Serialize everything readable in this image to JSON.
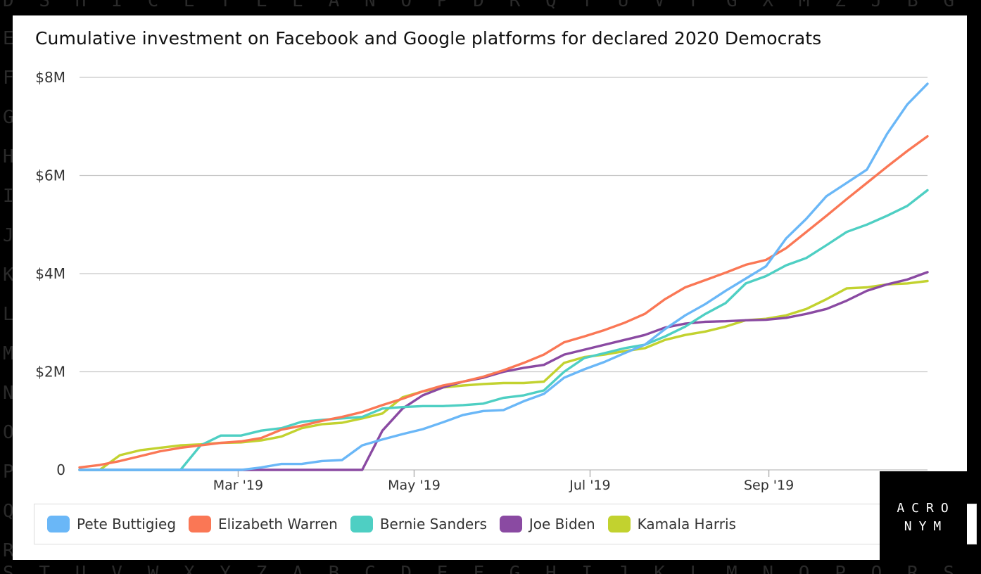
{
  "background": {
    "top_letters": [
      "D",
      "S",
      "H",
      "I",
      "C",
      "E",
      "Y",
      "L",
      "E",
      "A",
      "N",
      "O",
      "P",
      "D",
      "R",
      "Q",
      "T",
      "U",
      "V",
      "F",
      "G",
      "X",
      "M",
      "Z",
      "J",
      "B",
      "G"
    ],
    "left_letters": [
      "E",
      "F",
      "G",
      "H",
      "I",
      "J",
      "K",
      "L",
      "M",
      "N",
      "O",
      "P",
      "Q",
      "R"
    ],
    "bottom_letters": [
      "S",
      "T",
      "U",
      "V",
      "W",
      "X",
      "Y",
      "Z",
      "A",
      "B",
      "C",
      "D",
      "E",
      "F",
      "G",
      "H",
      "I",
      "J",
      "K",
      "L",
      "M",
      "N",
      "O",
      "P",
      "Q",
      "R",
      "S"
    ]
  },
  "logo": {
    "line1": "ACRO",
    "line2": "NYM"
  },
  "colors": {
    "buttigieg": "#6ab7f7",
    "warren": "#fa7755",
    "sanders": "#4ecfc3",
    "biden": "#8a4aa2",
    "harris": "#c2d22f",
    "grid": "#c8c8c8",
    "axis_text": "#333333"
  },
  "chart_data": {
    "type": "line",
    "title": "Cumulative investment on Facebook and Google platforms for declared 2020 Democrats",
    "xlabel": "",
    "ylabel": "",
    "ylim": [
      0,
      8
    ],
    "xlim": [
      "2019-01-05",
      "2019-10-26"
    ],
    "yticks": [
      0,
      2,
      4,
      6,
      8
    ],
    "ytick_labels": [
      "0",
      "$2M",
      "$4M",
      "$6M",
      "$8M"
    ],
    "xticks": [
      "2019-03-01",
      "2019-05-01",
      "2019-07-01",
      "2019-09-01"
    ],
    "xtick_labels": [
      "Mar '19",
      "May '19",
      "Jul '19",
      "Sep '19"
    ],
    "grid": true,
    "legend_position": "bottom",
    "x": [
      "2019-01-05",
      "2019-01-12",
      "2019-01-19",
      "2019-01-26",
      "2019-02-02",
      "2019-02-09",
      "2019-02-16",
      "2019-02-23",
      "2019-03-02",
      "2019-03-09",
      "2019-03-16",
      "2019-03-23",
      "2019-03-30",
      "2019-04-06",
      "2019-04-13",
      "2019-04-20",
      "2019-04-27",
      "2019-05-04",
      "2019-05-11",
      "2019-05-18",
      "2019-05-25",
      "2019-06-01",
      "2019-06-08",
      "2019-06-15",
      "2019-06-22",
      "2019-06-29",
      "2019-07-06",
      "2019-07-13",
      "2019-07-20",
      "2019-07-27",
      "2019-08-03",
      "2019-08-10",
      "2019-08-17",
      "2019-08-24",
      "2019-08-31",
      "2019-09-07",
      "2019-09-14",
      "2019-09-21",
      "2019-09-28",
      "2019-10-05",
      "2019-10-12",
      "2019-10-19",
      "2019-10-26"
    ],
    "series": [
      {
        "name": "Pete Buttigieg",
        "key": "buttigieg",
        "values": [
          0,
          0,
          0,
          0,
          0,
          0,
          0,
          0,
          0,
          0.05,
          0.12,
          0.12,
          0.18,
          0.2,
          0.5,
          0.62,
          0.73,
          0.83,
          0.97,
          1.12,
          1.2,
          1.22,
          1.4,
          1.55,
          1.88,
          2.05,
          2.2,
          2.38,
          2.55,
          2.87,
          3.15,
          3.38,
          3.65,
          3.9,
          4.15,
          4.72,
          5.12,
          5.58,
          5.85,
          6.12,
          6.85,
          7.45,
          7.87
        ]
      },
      {
        "name": "Elizabeth Warren",
        "key": "warren",
        "values": [
          0.05,
          0.1,
          0.18,
          0.28,
          0.38,
          0.45,
          0.5,
          0.55,
          0.58,
          0.65,
          0.82,
          0.9,
          1.0,
          1.08,
          1.18,
          1.32,
          1.45,
          1.6,
          1.72,
          1.8,
          1.9,
          2.03,
          2.18,
          2.35,
          2.6,
          2.72,
          2.85,
          3.0,
          3.18,
          3.48,
          3.72,
          3.87,
          4.02,
          4.18,
          4.28,
          4.52,
          4.85,
          5.18,
          5.52,
          5.85,
          6.18,
          6.5,
          6.8
        ]
      },
      {
        "name": "Bernie Sanders",
        "key": "sanders",
        "values": [
          0,
          0,
          0,
          0,
          0,
          0,
          0.5,
          0.7,
          0.7,
          0.8,
          0.85,
          0.98,
          1.02,
          1.05,
          1.08,
          1.25,
          1.28,
          1.3,
          1.3,
          1.32,
          1.35,
          1.47,
          1.52,
          1.62,
          2.0,
          2.28,
          2.38,
          2.48,
          2.55,
          2.72,
          2.92,
          3.18,
          3.4,
          3.8,
          3.95,
          4.17,
          4.32,
          4.58,
          4.85,
          5.0,
          5.18,
          5.38,
          5.7
        ]
      },
      {
        "name": "Joe Biden",
        "key": "biden",
        "values": [
          0,
          0,
          0,
          0,
          0,
          0,
          0,
          0,
          0,
          0,
          0,
          0,
          0,
          0,
          0,
          0.8,
          1.25,
          1.52,
          1.68,
          1.8,
          1.88,
          2.0,
          2.08,
          2.14,
          2.35,
          2.45,
          2.55,
          2.65,
          2.75,
          2.9,
          2.98,
          3.02,
          3.03,
          3.05,
          3.06,
          3.1,
          3.18,
          3.28,
          3.45,
          3.65,
          3.78,
          3.88,
          4.03
        ]
      },
      {
        "name": "Kamala Harris",
        "key": "harris",
        "values": [
          0,
          0,
          0.3,
          0.4,
          0.45,
          0.5,
          0.52,
          0.55,
          0.56,
          0.6,
          0.68,
          0.85,
          0.93,
          0.96,
          1.05,
          1.15,
          1.48,
          1.6,
          1.68,
          1.72,
          1.75,
          1.77,
          1.77,
          1.8,
          2.18,
          2.3,
          2.35,
          2.42,
          2.48,
          2.65,
          2.75,
          2.82,
          2.92,
          3.05,
          3.08,
          3.15,
          3.28,
          3.48,
          3.7,
          3.72,
          3.78,
          3.8,
          3.85
        ]
      }
    ]
  }
}
